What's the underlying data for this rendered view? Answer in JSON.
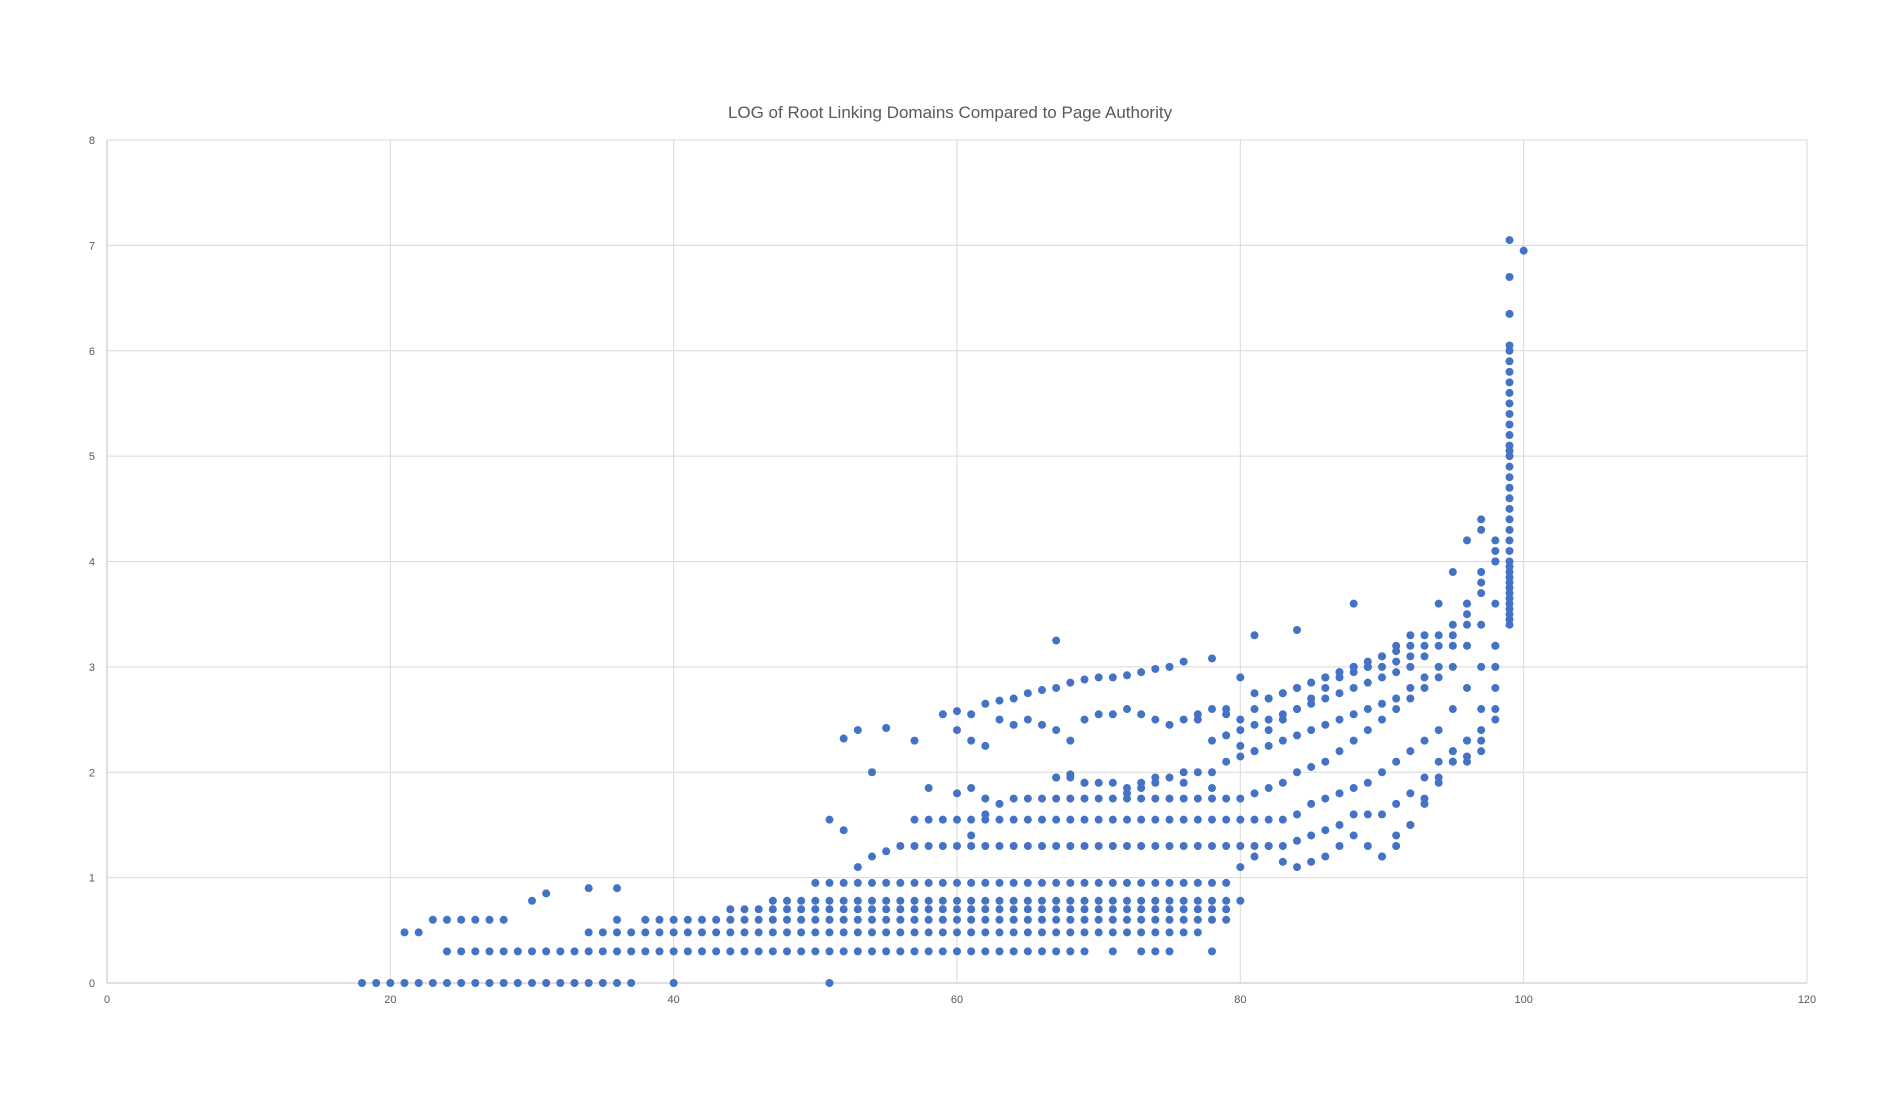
{
  "chart_data": {
    "type": "scatter",
    "title": "LOG of Root Linking Domains Compared to Page Authority",
    "xlabel": "",
    "ylabel": "",
    "xlim": [
      0,
      120
    ],
    "ylim": [
      0,
      8
    ],
    "x_ticks": [
      "0",
      "20",
      "40",
      "60",
      "80",
      "100",
      "120"
    ],
    "y_ticks": [
      "0",
      "1",
      "2",
      "3",
      "4",
      "5",
      "6",
      "7",
      "8"
    ],
    "grid": true,
    "legend": "none",
    "marker_color": "#4472c4",
    "series": [
      {
        "x": [
          18,
          19,
          20,
          21,
          22,
          23,
          24,
          25,
          26,
          27,
          28,
          29,
          30,
          31,
          32,
          33,
          34,
          35,
          36,
          37,
          40,
          51,
          21,
          22,
          23,
          24,
          25,
          26,
          27,
          28,
          30,
          31,
          34,
          36,
          24,
          25,
          26,
          27,
          28,
          29,
          30,
          31,
          32,
          33,
          34,
          35,
          36,
          37,
          38,
          39,
          40,
          41,
          42,
          43,
          44,
          45,
          46,
          47,
          48,
          49,
          50,
          51,
          52,
          53,
          54,
          55,
          56,
          57,
          58,
          59,
          60,
          61,
          62,
          63,
          64,
          65,
          66,
          67,
          68,
          69,
          71,
          73,
          74,
          75,
          78,
          34,
          35,
          36,
          37,
          38,
          39,
          40,
          41,
          42,
          43,
          44,
          45,
          46,
          47,
          48,
          49,
          50,
          51,
          52,
          53,
          54,
          55,
          56,
          57,
          58,
          59,
          60,
          61,
          62,
          63,
          64,
          65,
          66,
          67,
          68,
          69,
          70,
          71,
          72,
          73,
          74,
          75,
          76,
          77,
          36,
          38,
          39,
          40,
          41,
          42,
          43,
          44,
          45,
          46,
          47,
          48,
          49,
          50,
          51,
          52,
          53,
          54,
          55,
          56,
          57,
          58,
          59,
          60,
          61,
          62,
          63,
          64,
          65,
          66,
          67,
          68,
          69,
          70,
          71,
          72,
          73,
          74,
          75,
          76,
          77,
          78,
          79,
          44,
          45,
          46,
          47,
          48,
          49,
          50,
          51,
          52,
          53,
          54,
          55,
          56,
          57,
          58,
          59,
          60,
          61,
          62,
          63,
          64,
          65,
          66,
          67,
          68,
          69,
          70,
          71,
          72,
          73,
          74,
          75,
          76,
          77,
          78,
          79,
          47,
          48,
          49,
          50,
          51,
          52,
          53,
          54,
          55,
          56,
          57,
          58,
          59,
          60,
          61,
          62,
          63,
          64,
          65,
          66,
          67,
          68,
          69,
          70,
          71,
          72,
          73,
          74,
          75,
          76,
          77,
          78,
          79,
          80,
          50,
          51,
          52,
          53,
          54,
          55,
          56,
          57,
          58,
          59,
          60,
          61,
          62,
          63,
          64,
          65,
          66,
          67,
          68,
          69,
          70,
          71,
          72,
          73,
          74,
          75,
          76,
          77,
          78,
          79,
          80,
          81,
          82,
          83,
          84,
          85,
          86,
          87,
          88,
          89,
          90,
          91,
          92,
          93,
          94,
          95,
          96,
          97,
          98,
          53,
          54,
          55,
          56,
          57,
          58,
          59,
          60,
          61,
          62,
          63,
          64,
          65,
          66,
          67,
          68,
          69,
          70,
          71,
          72,
          73,
          74,
          75,
          76,
          77,
          78,
          79,
          80,
          81,
          82,
          83,
          84,
          85,
          86,
          87,
          88,
          89,
          90,
          91,
          92,
          93,
          94,
          95,
          96,
          97,
          98,
          57,
          58,
          59,
          60,
          61,
          62,
          63,
          64,
          65,
          66,
          67,
          68,
          69,
          70,
          71,
          72,
          73,
          74,
          75,
          76,
          77,
          78,
          79,
          80,
          81,
          82,
          83,
          84,
          85,
          86,
          87,
          88,
          89,
          90,
          91,
          92,
          93,
          94,
          95,
          96,
          97,
          98,
          61,
          62,
          63,
          64,
          65,
          66,
          67,
          68,
          69,
          70,
          71,
          72,
          73,
          74,
          75,
          76,
          77,
          78,
          79,
          80,
          81,
          82,
          83,
          84,
          85,
          86,
          87,
          88,
          89,
          90,
          91,
          92,
          93,
          94,
          95,
          96,
          97,
          98,
          67,
          68,
          69,
          70,
          71,
          72,
          73,
          74,
          75,
          76,
          77,
          78,
          79,
          80,
          81,
          82,
          83,
          84,
          85,
          86,
          87,
          88,
          89,
          90,
          91,
          92,
          93,
          94,
          95,
          96,
          97,
          98,
          78,
          79,
          80,
          81,
          82,
          83,
          84,
          85,
          86,
          87,
          88,
          89,
          90,
          91,
          92,
          93,
          94,
          95,
          96,
          97,
          98,
          82,
          83,
          84,
          85,
          86,
          87,
          88,
          89,
          90,
          91,
          92,
          93,
          94,
          95,
          96,
          97,
          98,
          90,
          91,
          92,
          93,
          94,
          95,
          96,
          97,
          98,
          94,
          95,
          96,
          97,
          98,
          95,
          96,
          97,
          98,
          96,
          97,
          98,
          51,
          52,
          53,
          55,
          57,
          59,
          60,
          61,
          62,
          63,
          64,
          65,
          66,
          67,
          68,
          69,
          70,
          71,
          72,
          73,
          74,
          75,
          76,
          77,
          78,
          79,
          80,
          81,
          60,
          61,
          62,
          63,
          64,
          65,
          66,
          67,
          68,
          69,
          70,
          71,
          72,
          73,
          74,
          75,
          76,
          77,
          78,
          79,
          80,
          81,
          82,
          83,
          84,
          85,
          86,
          87,
          88,
          89,
          90,
          91,
          92,
          93,
          52,
          54,
          58,
          60,
          61,
          62,
          67,
          68,
          69,
          72,
          73,
          74,
          76,
          78,
          80,
          81,
          82,
          83,
          84,
          85,
          86,
          87,
          88,
          89,
          90,
          91,
          92,
          67,
          81,
          84,
          88,
          99,
          99,
          99,
          99,
          99,
          99,
          99,
          99,
          99,
          99,
          99,
          99,
          99,
          99,
          99,
          99,
          99,
          99,
          99,
          99,
          99,
          99,
          99,
          99,
          99,
          99,
          99,
          99,
          99,
          99,
          99,
          99,
          99,
          99,
          99,
          99,
          99,
          99,
          100
        ],
        "y": [
          0,
          0,
          0,
          0,
          0,
          0,
          0,
          0,
          0,
          0,
          0,
          0,
          0,
          0,
          0,
          0,
          0,
          0,
          0,
          0,
          0,
          0,
          0.48,
          0.48,
          0.6,
          0.6,
          0.6,
          0.6,
          0.6,
          0.6,
          0.78,
          0.85,
          0.9,
          0.9,
          0.3,
          0.3,
          0.3,
          0.3,
          0.3,
          0.3,
          0.3,
          0.3,
          0.3,
          0.3,
          0.3,
          0.3,
          0.3,
          0.3,
          0.3,
          0.3,
          0.3,
          0.3,
          0.3,
          0.3,
          0.3,
          0.3,
          0.3,
          0.3,
          0.3,
          0.3,
          0.3,
          0.3,
          0.3,
          0.3,
          0.3,
          0.3,
          0.3,
          0.3,
          0.3,
          0.3,
          0.3,
          0.3,
          0.3,
          0.3,
          0.3,
          0.3,
          0.3,
          0.3,
          0.3,
          0.3,
          0.3,
          0.3,
          0.3,
          0.3,
          0.3,
          0.48,
          0.48,
          0.48,
          0.48,
          0.48,
          0.48,
          0.48,
          0.48,
          0.48,
          0.48,
          0.48,
          0.48,
          0.48,
          0.48,
          0.48,
          0.48,
          0.48,
          0.48,
          0.48,
          0.48,
          0.48,
          0.48,
          0.48,
          0.48,
          0.48,
          0.48,
          0.48,
          0.48,
          0.48,
          0.48,
          0.48,
          0.48,
          0.48,
          0.48,
          0.48,
          0.48,
          0.48,
          0.48,
          0.48,
          0.48,
          0.48,
          0.48,
          0.48,
          0.48,
          0.6,
          0.6,
          0.6,
          0.6,
          0.6,
          0.6,
          0.6,
          0.6,
          0.6,
          0.6,
          0.6,
          0.6,
          0.6,
          0.6,
          0.6,
          0.6,
          0.6,
          0.6,
          0.6,
          0.6,
          0.6,
          0.6,
          0.6,
          0.6,
          0.6,
          0.6,
          0.6,
          0.6,
          0.6,
          0.6,
          0.6,
          0.6,
          0.6,
          0.6,
          0.6,
          0.6,
          0.6,
          0.6,
          0.6,
          0.6,
          0.6,
          0.6,
          0.6,
          0.7,
          0.7,
          0.7,
          0.7,
          0.7,
          0.7,
          0.7,
          0.7,
          0.7,
          0.7,
          0.7,
          0.7,
          0.7,
          0.7,
          0.7,
          0.7,
          0.7,
          0.7,
          0.7,
          0.7,
          0.7,
          0.7,
          0.7,
          0.7,
          0.7,
          0.7,
          0.7,
          0.7,
          0.7,
          0.7,
          0.7,
          0.7,
          0.7,
          0.7,
          0.7,
          0.7,
          0.78,
          0.78,
          0.78,
          0.78,
          0.78,
          0.78,
          0.78,
          0.78,
          0.78,
          0.78,
          0.78,
          0.78,
          0.78,
          0.78,
          0.78,
          0.78,
          0.78,
          0.78,
          0.78,
          0.78,
          0.78,
          0.78,
          0.78,
          0.78,
          0.78,
          0.78,
          0.78,
          0.78,
          0.78,
          0.78,
          0.78,
          0.78,
          0.78,
          0.78,
          0.95,
          0.95,
          0.95,
          0.95,
          0.95,
          0.95,
          0.95,
          0.95,
          0.95,
          0.95,
          0.95,
          0.95,
          0.95,
          0.95,
          0.95,
          0.95,
          0.95,
          0.95,
          0.95,
          0.95,
          0.95,
          0.95,
          0.95,
          0.95,
          0.95,
          0.95,
          0.95,
          0.95,
          0.95,
          0.95,
          1.1,
          1.2,
          1.3,
          1.15,
          1.1,
          1.15,
          1.2,
          1.3,
          1.4,
          1.3,
          1.2,
          1.3,
          1.5,
          1.75,
          1.95,
          2.1,
          2.15,
          2.2,
          2.5,
          1.1,
          1.2,
          1.25,
          1.3,
          1.3,
          1.3,
          1.3,
          1.3,
          1.3,
          1.3,
          1.3,
          1.3,
          1.3,
          1.3,
          1.3,
          1.3,
          1.3,
          1.3,
          1.3,
          1.3,
          1.3,
          1.3,
          1.3,
          1.3,
          1.3,
          1.3,
          1.3,
          1.3,
          1.3,
          1.3,
          1.3,
          1.35,
          1.4,
          1.45,
          1.5,
          1.6,
          1.6,
          1.6,
          1.7,
          1.8,
          1.95,
          2.1,
          2.2,
          2.3,
          2.4,
          2.6,
          1.55,
          1.55,
          1.55,
          1.55,
          1.55,
          1.55,
          1.55,
          1.55,
          1.55,
          1.55,
          1.55,
          1.55,
          1.55,
          1.55,
          1.55,
          1.55,
          1.55,
          1.55,
          1.55,
          1.55,
          1.55,
          1.55,
          1.55,
          1.55,
          1.55,
          1.55,
          1.55,
          1.6,
          1.7,
          1.75,
          1.8,
          1.85,
          1.9,
          2.0,
          2.1,
          2.2,
          2.3,
          2.4,
          2.6,
          2.8,
          3.0,
          3.2,
          1.4,
          1.6,
          1.7,
          1.75,
          1.75,
          1.75,
          1.75,
          1.75,
          1.75,
          1.75,
          1.75,
          1.75,
          1.75,
          1.75,
          1.75,
          1.75,
          1.75,
          1.75,
          1.75,
          1.75,
          1.8,
          1.85,
          1.9,
          2.0,
          2.05,
          2.1,
          2.2,
          2.3,
          2.4,
          2.5,
          2.6,
          2.7,
          2.8,
          2.9,
          3.0,
          3.2,
          3.4,
          3.6,
          1.95,
          1.95,
          1.9,
          1.9,
          1.9,
          1.85,
          1.85,
          1.9,
          1.95,
          2.0,
          2.0,
          2.0,
          2.1,
          2.15,
          2.2,
          2.25,
          2.3,
          2.35,
          2.4,
          2.45,
          2.5,
          2.55,
          2.6,
          2.65,
          2.7,
          2.8,
          2.9,
          3.0,
          3.2,
          3.4,
          3.7,
          4.1,
          2.3,
          2.35,
          2.4,
          2.45,
          2.5,
          2.55,
          2.6,
          2.65,
          2.7,
          2.75,
          2.8,
          2.85,
          2.9,
          2.95,
          3.0,
          3.1,
          3.2,
          3.3,
          3.6,
          3.9,
          4.2,
          2.7,
          2.75,
          2.8,
          2.85,
          2.9,
          2.95,
          3.0,
          3.0,
          3.0,
          3.05,
          3.1,
          3.2,
          3.3,
          3.4,
          3.6,
          3.8,
          4.0,
          1.2,
          1.4,
          1.5,
          1.7,
          1.9,
          2.1,
          2.3,
          2.6,
          3.0,
          3.6,
          3.9,
          4.2,
          4.3,
          4.0,
          2.2,
          2.1,
          2.3,
          2.8,
          3.5,
          4.4,
          3.2,
          1.55,
          1.45,
          2.4,
          2.42,
          2.3,
          2.55,
          2.58,
          2.55,
          2.65,
          2.68,
          2.7,
          2.75,
          2.78,
          2.8,
          2.85,
          2.88,
          2.9,
          2.9,
          2.92,
          2.95,
          2.98,
          3.0,
          3.05,
          2.5,
          3.08,
          2.6,
          2.9,
          2.75,
          2.4,
          2.3,
          2.25,
          2.5,
          2.45,
          2.5,
          2.45,
          2.4,
          2.3,
          2.5,
          2.55,
          2.55,
          2.6,
          2.55,
          2.5,
          2.45,
          2.5,
          2.55,
          2.6,
          2.55,
          2.5,
          2.6,
          2.7,
          2.75,
          2.8,
          2.85,
          2.9,
          2.95,
          3.0,
          3.05,
          3.1,
          3.15,
          3.2,
          3.3,
          2.32,
          2.0,
          1.85,
          1.8,
          1.85,
          1.75,
          1.95,
          1.98,
          1.9,
          1.8,
          1.9,
          1.95,
          1.9,
          1.85,
          2.25,
          2.2,
          2.4,
          2.5,
          2.6,
          2.7,
          2.8,
          2.9,
          2.95,
          3.0,
          3.1,
          3.2,
          3.3,
          3.25,
          3.3,
          3.35,
          3.6,
          3.4,
          3.5,
          3.6,
          3.7,
          3.8,
          3.9,
          4.0,
          4.1,
          4.2,
          4.3,
          4.4,
          4.5,
          4.6,
          4.7,
          4.8,
          4.9,
          5.0,
          5.1,
          5.2,
          5.3,
          5.4,
          5.5,
          5.6,
          5.7,
          5.8,
          5.9,
          6.0,
          6.05,
          6.35,
          6.7,
          7.05,
          3.45,
          3.55,
          3.65,
          3.75,
          3.85,
          3.95,
          5.05,
          6.95
        ]
      }
    ]
  }
}
